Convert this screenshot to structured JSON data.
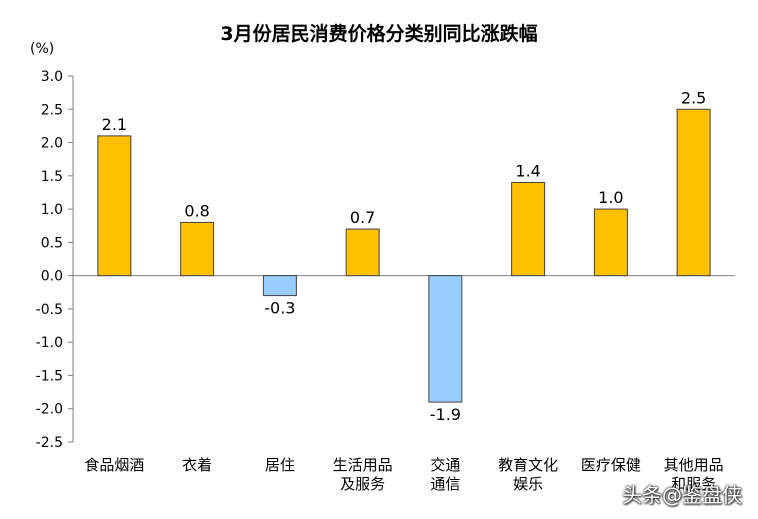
{
  "chart_data": {
    "type": "bar",
    "title": "3月份居民消费价格分类别同比涨跌幅",
    "ylabel": "(%)",
    "xlabel": "",
    "categories": [
      [
        "食品烟酒"
      ],
      [
        "衣着"
      ],
      [
        "居住"
      ],
      [
        "生活用品",
        "及服务"
      ],
      [
        "交通",
        "通信"
      ],
      [
        "教育文化",
        "娱乐"
      ],
      [
        "医疗保健"
      ],
      [
        "其他用品",
        "和服务"
      ]
    ],
    "values": [
      2.1,
      0.8,
      -0.3,
      0.7,
      -1.9,
      1.4,
      1.0,
      2.5
    ],
    "value_labels": [
      "2.1",
      "0.8",
      "-0.3",
      "0.7",
      "-1.9",
      "1.4",
      "1.0",
      "2.5"
    ],
    "ylim": [
      -2.5,
      3.0
    ],
    "yticks": [
      "3.0",
      "2.5",
      "2.0",
      "1.5",
      "1.0",
      "0.5",
      "0.0",
      "-0.5",
      "-1.0",
      "-1.5",
      "-2.0",
      "-2.5"
    ],
    "grid": false,
    "legend": "none",
    "colors": {
      "positive": "#FFC000",
      "negative": "#99CCFF",
      "border": "#404040"
    }
  },
  "watermark": "头条@鉴盘侠"
}
